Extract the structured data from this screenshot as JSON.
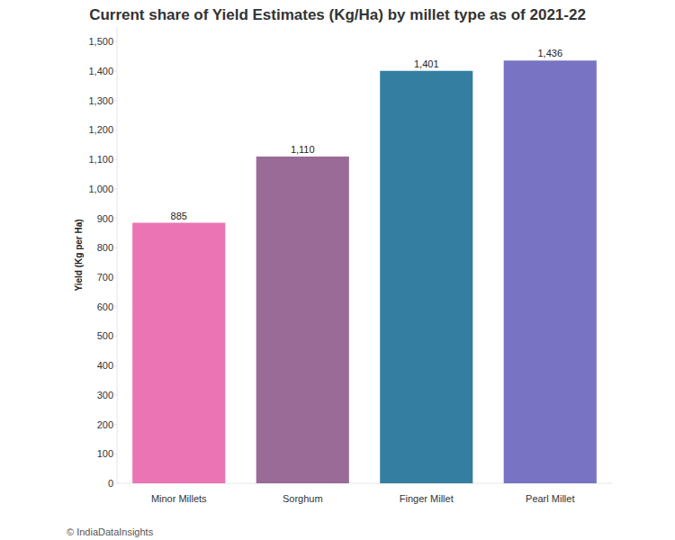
{
  "chart_data": {
    "type": "bar",
    "title": "Current share of Yield Estimates (Kg/Ha) by millet type as of 2021-22",
    "y_label": "Yield (Kg per Ha)",
    "categories": [
      "Minor Millets",
      "Sorghum",
      "Finger Millet",
      "Pearl Millet"
    ],
    "values": [
      885,
      1110,
      1401,
      1436
    ],
    "value_labels": [
      "885",
      "1,110",
      "1,401",
      "1,436"
    ],
    "colors": [
      "#ea74b4",
      "#9a6b96",
      "#347fa1",
      "#7873c2"
    ],
    "data_labels": true,
    "grid": false,
    "ylim": [
      0,
      1550
    ],
    "yticks": [
      0,
      100,
      200,
      300,
      400,
      500,
      600,
      700,
      800,
      900,
      {
        "value": 1000,
        "label": "1,000"
      },
      {
        "value": 1100,
        "label": "1,100"
      },
      {
        "value": 1200,
        "label": "1,200"
      },
      {
        "value": 1300,
        "label": "1,300"
      },
      {
        "value": 1400,
        "label": "1,400"
      },
      {
        "value": 1500,
        "label": "1,500"
      }
    ],
    "annotations": [
      "© IndiaDataInsights"
    ]
  }
}
